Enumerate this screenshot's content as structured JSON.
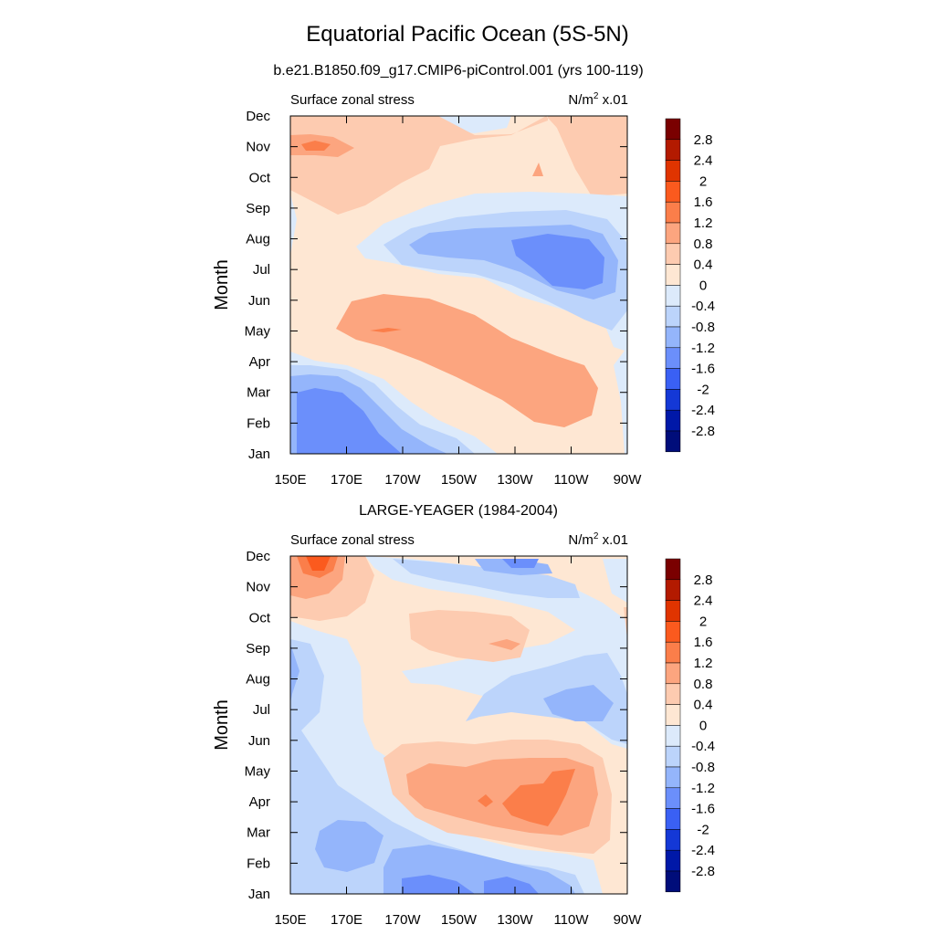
{
  "figure": {
    "title": "Equatorial Pacific Ocean (5S-5N)",
    "colorbar_levels": [
      "2.8",
      "2.4",
      "2",
      "1.6",
      "1.2",
      "0.8",
      "0.4",
      "0",
      "-0.4",
      "-0.8",
      "-1.2",
      "-1.6",
      "-2",
      "-2.4",
      "-2.8"
    ],
    "colors": [
      "#7a0000",
      "#b31a00",
      "#e03400",
      "#fb5a1e",
      "#fb7e4a",
      "#fca57f",
      "#fdcbb0",
      "#fee7d3",
      "#dceafb",
      "#bcd4fb",
      "#94b5fb",
      "#6b8ffb",
      "#3a60f4",
      "#1438d6",
      "#0018a8",
      "#000d7a"
    ]
  },
  "chart_data": [
    {
      "type": "contour",
      "panel_title": "b.e21.B1850.f09_g17.CMIP6-piControl.001 (yrs 100-119)",
      "left_label": "Surface zonal stress",
      "units_base": "N/m",
      "units_sup": "2",
      "units_scale": "x.01",
      "xlabel": "",
      "ylabel": "Month",
      "xticks": [
        "150E",
        "170E",
        "170W",
        "150W",
        "130W",
        "110W",
        "90W"
      ],
      "yticks": [
        "Jan",
        "Feb",
        "Mar",
        "Apr",
        "May",
        "Jun",
        "Jul",
        "Aug",
        "Sep",
        "Oct",
        "Nov",
        "Dec"
      ],
      "levels": [
        -2.8,
        -2.4,
        -2,
        -1.6,
        -1.2,
        -0.8,
        -0.4,
        0,
        0.4,
        0.8,
        1.2,
        1.6,
        2,
        2.4,
        2.8
      ],
      "features": [
        {
          "lon": 170,
          "month": 10.0,
          "value": 1.0
        },
        {
          "lon": 170,
          "month": 9.1,
          "value": 0.7
        },
        {
          "lon": 190,
          "month": 9.4,
          "value": 0.6
        },
        {
          "lon": 212,
          "month": 9.3,
          "value": 0.5
        },
        {
          "lon": 246,
          "month": 10.0,
          "value": 0.5
        },
        {
          "lon": 260,
          "month": 10.0,
          "value": 0.4
        },
        {
          "lon": 240,
          "month": 5.9,
          "value": -1.8
        },
        {
          "lon": 220,
          "month": 6.4,
          "value": -0.9
        },
        {
          "lon": 230,
          "month": 5.5,
          "value": -0.7
        },
        {
          "lon": 260,
          "month": 5.3,
          "value": -0.6
        },
        {
          "lon": 200,
          "month": 3.9,
          "value": 0.9
        },
        {
          "lon": 240,
          "month": 2.7,
          "value": 1.0
        },
        {
          "lon": 225,
          "month": 3.2,
          "value": 0.9
        },
        {
          "lon": 180,
          "month": 4.1,
          "value": 0.7
        },
        {
          "lon": 260,
          "month": 3.2,
          "value": 0.3
        },
        {
          "lon": 165,
          "month": 0.7,
          "value": -1.7
        },
        {
          "lon": 185,
          "month": 0.5,
          "value": -1.0
        },
        {
          "lon": 200,
          "month": 0.5,
          "value": -0.5
        }
      ]
    },
    {
      "type": "contour",
      "panel_title": "LARGE-YEAGER (1984-2004)",
      "left_label": "Surface zonal stress",
      "units_base": "N/m",
      "units_sup": "2",
      "units_scale": "x.01",
      "xlabel": "",
      "ylabel": "Month",
      "xticks": [
        "150E",
        "170E",
        "170W",
        "150W",
        "130W",
        "110W",
        "90W"
      ],
      "yticks": [
        "Jan",
        "Feb",
        "Mar",
        "Apr",
        "May",
        "Jun",
        "Jul",
        "Aug",
        "Sep",
        "Oct",
        "Nov",
        "Dec"
      ],
      "levels": [
        -2.8,
        -2.4,
        -2,
        -1.6,
        -1.2,
        -0.8,
        -0.4,
        0,
        0.4,
        0.8,
        1.2,
        1.6,
        2,
        2.4,
        2.8
      ],
      "features": [
        {
          "lon": 155,
          "month": 11.0,
          "value": 1.6
        },
        {
          "lon": 160,
          "month": 10.3,
          "value": 0.9
        },
        {
          "lon": 175,
          "month": 10.3,
          "value": 0.4
        },
        {
          "lon": 215,
          "month": 8.3,
          "value": 0.6
        },
        {
          "lon": 230,
          "month": 8.0,
          "value": 0.8
        },
        {
          "lon": 230,
          "month": 11.0,
          "value": -0.8
        },
        {
          "lon": 245,
          "month": 6.2,
          "value": -0.9
        },
        {
          "lon": 225,
          "month": 6.6,
          "value": -0.6
        },
        {
          "lon": 151,
          "month": 7.0,
          "value": -0.8
        },
        {
          "lon": 240,
          "month": 3.0,
          "value": 1.3
        },
        {
          "lon": 228,
          "month": 3.3,
          "value": 1.0
        },
        {
          "lon": 215,
          "month": 3.2,
          "value": 0.8
        },
        {
          "lon": 185,
          "month": 1.2,
          "value": -0.9
        },
        {
          "lon": 210,
          "month": 0.2,
          "value": -1.2
        },
        {
          "lon": 260,
          "month": 1.0,
          "value": 0.2
        }
      ]
    }
  ]
}
